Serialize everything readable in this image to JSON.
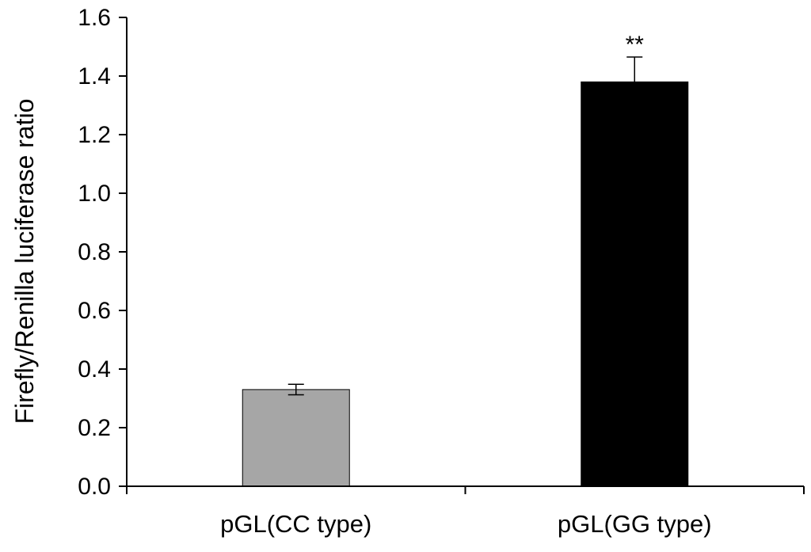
{
  "chart_data": {
    "type": "bar",
    "title": "",
    "xlabel": "",
    "ylabel": "Firefly/Renilla luciferase ratio",
    "ylim": [
      0,
      1.6
    ],
    "yticks": [
      "0.0",
      "0.2",
      "0.4",
      "0.6",
      "0.8",
      "1.0",
      "1.2",
      "1.4",
      "1.6"
    ],
    "grid": false,
    "legend": "none",
    "categories": [
      "pGL(CC type)",
      "pGL(GG type)"
    ],
    "values": [
      0.33,
      1.38
    ],
    "errors": [
      0.018,
      0.085
    ],
    "colors": [
      "#a6a6a6",
      "#000000"
    ],
    "annotations": [
      "",
      "**"
    ]
  }
}
